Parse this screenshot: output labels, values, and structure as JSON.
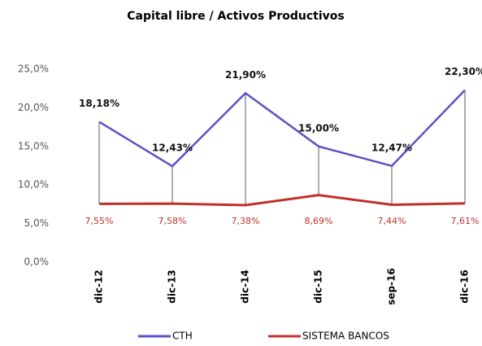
{
  "chart_data": {
    "type": "line",
    "title": "Capital libre / Activos Productivos",
    "categories": [
      "dic-12",
      "dic-13",
      "dic-14",
      "dic-15",
      "sep-16",
      "dic-16"
    ],
    "series": [
      {
        "name": "CTH",
        "color": "#5a52c6",
        "values": [
          18.18,
          12.43,
          21.9,
          15.0,
          12.47,
          22.3
        ],
        "value_labels": [
          "18,18%",
          "12,43%",
          "21,90%",
          "15,00%",
          "12,47%",
          "22,30%"
        ]
      },
      {
        "name": "SISTEMA BANCOS",
        "color": "#c0302a",
        "values": [
          7.55,
          7.58,
          7.38,
          8.69,
          7.44,
          7.61
        ],
        "value_labels": [
          "7,55%",
          "7,58%",
          "7,38%",
          "8,69%",
          "7,44%",
          "7,61%"
        ]
      }
    ],
    "ylim": [
      0,
      25
    ],
    "yticks": [
      {
        "value": 0,
        "label": "0,0%"
      },
      {
        "value": 5,
        "label": "5,0%"
      },
      {
        "value": 10,
        "label": "10,0%"
      },
      {
        "value": 15,
        "label": "15,0%"
      },
      {
        "value": 20,
        "label": "20,0%"
      },
      {
        "value": 25,
        "label": "25,0%"
      }
    ],
    "grid": false,
    "legend": "bottom"
  }
}
